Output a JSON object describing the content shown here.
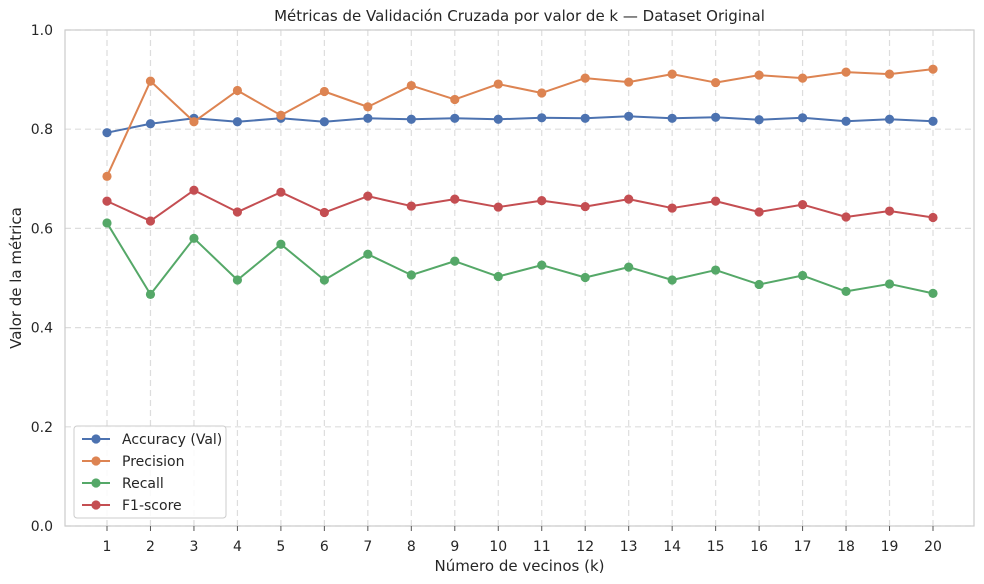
{
  "chart_data": {
    "type": "line",
    "title": "Métricas de Validación Cruzada por valor de k — Dataset Original",
    "xlabel": "Número de vecinos (k)",
    "ylabel": "Valor de la métrica",
    "x": [
      1,
      2,
      3,
      4,
      5,
      6,
      7,
      8,
      9,
      10,
      11,
      12,
      13,
      14,
      15,
      16,
      17,
      18,
      19,
      20
    ],
    "x_tick_labels": [
      "1",
      "2",
      "3",
      "4",
      "5",
      "6",
      "7",
      "8",
      "9",
      "10",
      "11",
      "12",
      "13",
      "14",
      "15",
      "16",
      "17",
      "18",
      "19",
      "20"
    ],
    "ylim": [
      0.0,
      1.0
    ],
    "y_ticks": [
      0.0,
      0.2,
      0.4,
      0.6,
      0.8,
      1.0
    ],
    "y_tick_labels": [
      "0.0",
      "0.2",
      "0.4",
      "0.6",
      "0.8",
      "1.0"
    ],
    "grid": true,
    "legend_position": "lower-left",
    "series": [
      {
        "name": "Accuracy (Val)",
        "color": "#4c72b0",
        "values": [
          0.793,
          0.811,
          0.822,
          0.815,
          0.822,
          0.815,
          0.822,
          0.82,
          0.822,
          0.82,
          0.823,
          0.822,
          0.826,
          0.822,
          0.824,
          0.819,
          0.823,
          0.816,
          0.82,
          0.816
        ]
      },
      {
        "name": "Precision",
        "color": "#dd8452",
        "values": [
          0.705,
          0.897,
          0.815,
          0.878,
          0.828,
          0.876,
          0.845,
          0.888,
          0.86,
          0.891,
          0.873,
          0.903,
          0.895,
          0.911,
          0.894,
          0.909,
          0.903,
          0.915,
          0.911,
          0.921
        ]
      },
      {
        "name": "Recall",
        "color": "#55a868",
        "values": [
          0.611,
          0.467,
          0.58,
          0.496,
          0.568,
          0.496,
          0.548,
          0.506,
          0.534,
          0.503,
          0.526,
          0.501,
          0.522,
          0.496,
          0.516,
          0.487,
          0.505,
          0.473,
          0.488,
          0.469
        ]
      },
      {
        "name": "F1-score",
        "color": "#c44e52",
        "values": [
          0.655,
          0.615,
          0.677,
          0.633,
          0.673,
          0.632,
          0.665,
          0.645,
          0.659,
          0.643,
          0.656,
          0.644,
          0.659,
          0.641,
          0.655,
          0.633,
          0.648,
          0.623,
          0.635,
          0.622
        ]
      }
    ]
  }
}
